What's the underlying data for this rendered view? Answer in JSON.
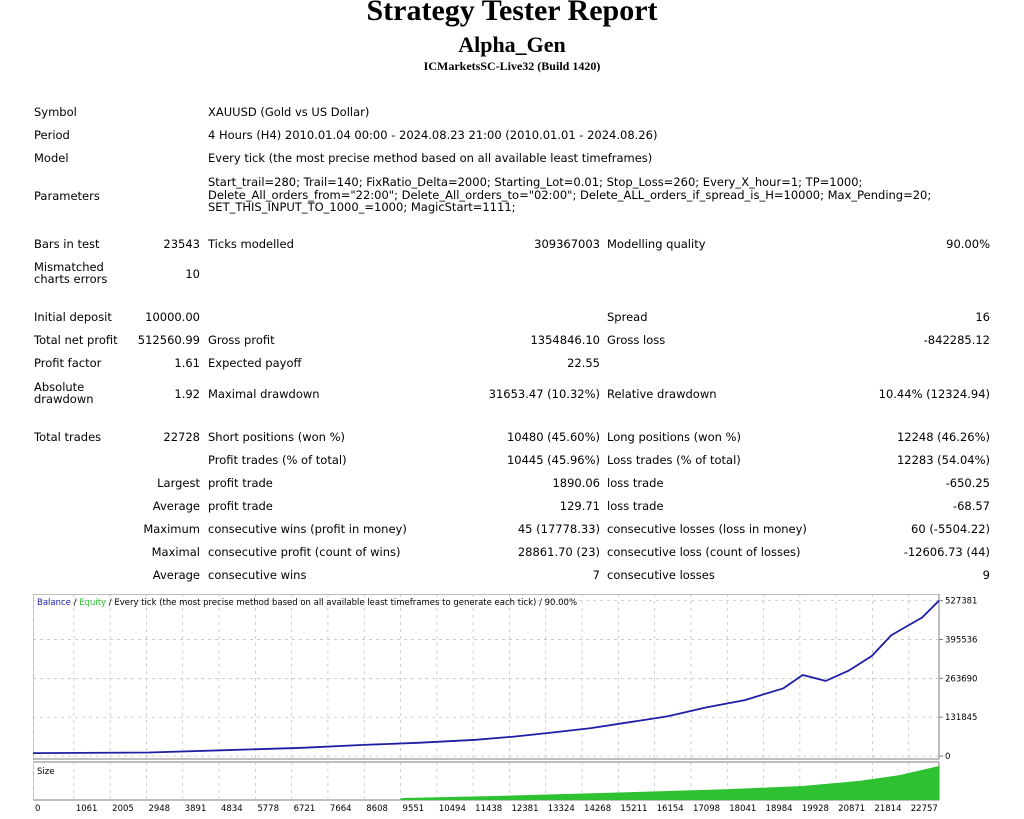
{
  "header": {
    "title": "Strategy Tester Report",
    "expert": "Alpha_Gen",
    "server": "ICMarketsSC-Live32 (Build 1420)"
  },
  "info": {
    "symbol_label": "Symbol",
    "symbol_value": "XAUUSD (Gold vs US Dollar)",
    "period_label": "Period",
    "period_value": "4 Hours (H4) 2010.01.04 00:00 - 2024.08.23 21:00 (2010.01.01 - 2024.08.26)",
    "model_label": "Model",
    "model_value": "Every tick (the most precise method based on all available least timeframes)",
    "parameters_label": "Parameters",
    "parameters_lines": [
      "Start_trail=280; Trail=140; FixRatio_Delta=2000; Starting_Lot=0.01; Stop_Loss=260; Every_X_hour=1; TP=1000;",
      "Delete_All_orders_from=\"22:00\"; Delete_All_orders_to=\"02:00\"; Delete_ALL_orders_if_spread_is_H=10000; Max_Pending=20;",
      "SET_THIS_INPUT_TO_1000_=1000; MagicStart=1111;"
    ]
  },
  "stats": {
    "bars_label": "Bars in test",
    "bars_value": "23543",
    "ticks_label": "Ticks modelled",
    "ticks_value": "309367003",
    "quality_label": "Modelling quality",
    "quality_value": "90.00%",
    "mismatch_label_1": "Mismatched",
    "mismatch_label_2": "charts errors",
    "mismatch_value": "10",
    "deposit_label": "Initial deposit",
    "deposit_value": "10000.00",
    "spread_label": "Spread",
    "spread_value": "16",
    "netprofit_label": "Total net profit",
    "netprofit_value": "512560.99",
    "grossprofit_label": "Gross profit",
    "grossprofit_value": "1354846.10",
    "grossloss_label": "Gross loss",
    "grossloss_value": "-842285.12",
    "pf_label": "Profit factor",
    "pf_value": "1.61",
    "payoff_label": "Expected payoff",
    "payoff_value": "22.55",
    "absdd_label_1": "Absolute",
    "absdd_label_2": "drawdown",
    "absdd_value": "1.92",
    "maxdd_label": "Maximal drawdown",
    "maxdd_value": "31653.47 (10.32%)",
    "reldd_label": "Relative drawdown",
    "reldd_value": "10.44% (12324.94)",
    "trades_label": "Total trades",
    "trades_value": "22728",
    "short_label": "Short positions (won %)",
    "short_value": "10480 (45.60%)",
    "long_label": "Long positions (won %)",
    "long_value": "12248 (46.26%)",
    "ptrades_label": "Profit trades (% of total)",
    "ptrades_value": "10445 (45.96%)",
    "ltrades_label": "Loss trades (% of total)",
    "ltrades_value": "12283 (54.04%)",
    "largest_label": "Largest",
    "largest_profit_label": "profit trade",
    "largest_profit_value": "1890.06",
    "largest_loss_label": "loss trade",
    "largest_loss_value": "-650.25",
    "average_label": "Average",
    "average_profit_label": "profit trade",
    "average_profit_value": "129.71",
    "average_loss_label": "loss trade",
    "average_loss_value": "-68.57",
    "maximum_label": "Maximum",
    "maxwins_label": "consecutive wins (profit in money)",
    "maxwins_value": "45 (17778.33)",
    "maxlosses_label": "consecutive losses (loss in money)",
    "maxlosses_value": "60 (-5504.22)",
    "maximal_label": "Maximal",
    "maxcprofit_label": "consecutive profit (count of wins)",
    "maxcprofit_value": "28861.70 (23)",
    "maxcloss_label": "consecutive loss (count of losses)",
    "maxcloss_value": "-12606.73 (44)",
    "average2_label": "Average",
    "avgwins_label": "consecutive wins",
    "avgwins_value": "7",
    "avglosses_label": "consecutive losses",
    "avglosses_value": "9"
  },
  "chart_data": {
    "type": "line",
    "legend": {
      "balance": "Balance",
      "sep1": " / ",
      "equity": "Equity",
      "rest": " / Every tick (the most precise method based on all available least timeframes to generate each tick) / 90.00%"
    },
    "size_label": "Size",
    "xlim": [
      0,
      23543
    ],
    "ylim": [
      -10000,
      550000
    ],
    "y_ticks": [
      0,
      131845,
      263690,
      395536,
      527381
    ],
    "x_ticks": [
      0,
      1061,
      2005,
      2948,
      3891,
      4834,
      5778,
      6721,
      7664,
      8608,
      9551,
      10494,
      11438,
      12381,
      13324,
      14268,
      15211,
      16154,
      17098,
      18041,
      18984,
      19928,
      20871,
      21814,
      22757
    ],
    "balance_points": [
      [
        0,
        10000
      ],
      [
        3000,
        12000
      ],
      [
        5000,
        20000
      ],
      [
        7000,
        28000
      ],
      [
        8600,
        38000
      ],
      [
        10000,
        45000
      ],
      [
        11500,
        55000
      ],
      [
        12500,
        66000
      ],
      [
        13500,
        80000
      ],
      [
        14500,
        95000
      ],
      [
        15500,
        115000
      ],
      [
        16500,
        135000
      ],
      [
        17500,
        165000
      ],
      [
        18500,
        190000
      ],
      [
        19500,
        230000
      ],
      [
        20000,
        275000
      ],
      [
        20600,
        255000
      ],
      [
        21200,
        290000
      ],
      [
        21800,
        340000
      ],
      [
        22300,
        410000
      ],
      [
        22700,
        440000
      ],
      [
        23100,
        470000
      ],
      [
        23543,
        527381
      ]
    ],
    "size_points": [
      [
        0,
        0
      ],
      [
        9500,
        0
      ],
      [
        9600,
        5
      ],
      [
        12000,
        10
      ],
      [
        15000,
        18
      ],
      [
        18000,
        27
      ],
      [
        20000,
        35
      ],
      [
        21500,
        48
      ],
      [
        22500,
        62
      ],
      [
        23543,
        85
      ]
    ],
    "colors": {
      "balance": "#1f1fa6",
      "equity": "#2ec232",
      "size": "#2ec232",
      "axis_text": "#000000"
    }
  }
}
